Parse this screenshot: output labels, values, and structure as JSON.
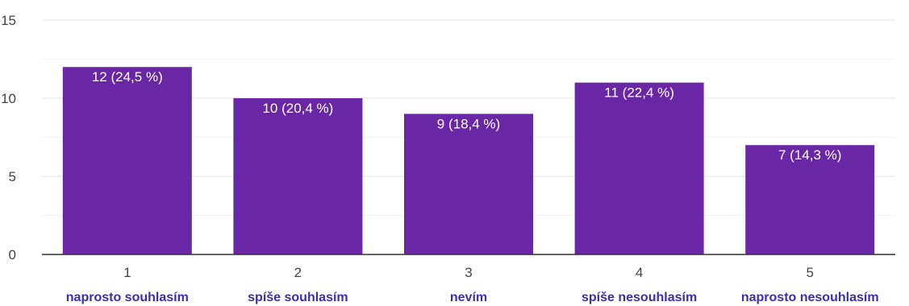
{
  "chart_data": {
    "type": "bar",
    "categories": [
      "1",
      "2",
      "3",
      "4",
      "5"
    ],
    "values": [
      12,
      10,
      9,
      11,
      7
    ],
    "data_labels": [
      "12 (24,5 %)",
      "10 (20,4 %)",
      "9 (18,4 %)",
      "11 (22,4 %)",
      "7 (14,3 %)"
    ],
    "category_descriptions": [
      "naprosto souhlasím",
      "spíše souhlasím",
      "nevím",
      "spíše nesouhlasím",
      "naprosto nesouhlasím"
    ],
    "ylim": [
      0,
      15
    ],
    "yticks": [
      0,
      5,
      10,
      15
    ],
    "ytick_labels": [
      "0",
      "5",
      "10",
      "15"
    ],
    "grid": true,
    "title": "",
    "xlabel": "",
    "ylabel": "",
    "colors": {
      "bar": "#6a27a5",
      "bar_label": "#ffffff",
      "description": "#3b2fb0",
      "gridline": "#e6e6e6",
      "minor_gridline": "#f3f3f3",
      "axis": "#333333",
      "tick_text": "#444444"
    }
  }
}
